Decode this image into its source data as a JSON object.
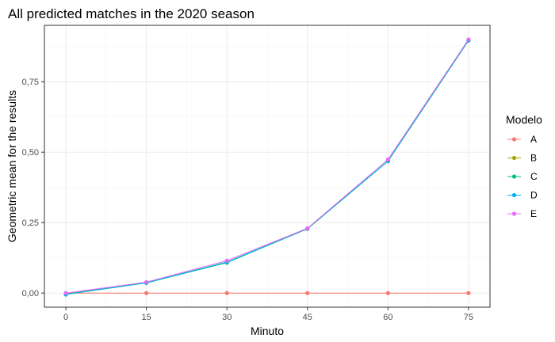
{
  "chart_data": {
    "type": "line",
    "title": "All predicted matches in the 2020 season",
    "xlabel": "Minuto",
    "ylabel": "Geometric mean for the results",
    "x": [
      0,
      15,
      30,
      45,
      60,
      75
    ],
    "xlim": [
      -4,
      79
    ],
    "ylim": [
      -0.05,
      0.95
    ],
    "xticks": [
      0,
      15,
      30,
      45,
      60,
      75
    ],
    "xtick_labels": [
      "0",
      "15",
      "30",
      "45",
      "60",
      "75"
    ],
    "yticks": [
      0,
      0.25,
      0.5,
      0.75
    ],
    "ytick_labels": [
      "0,00",
      "0,25",
      "0,50",
      "0,75"
    ],
    "grid": true,
    "legend": {
      "title": "Modelo",
      "position": "right"
    },
    "series": [
      {
        "name": "A",
        "color": "#F8766D",
        "values": [
          0.0,
          0.0,
          0.0,
          0.0,
          0.0,
          0.0
        ]
      },
      {
        "name": "B",
        "color": "#A3A500",
        "values": [
          -0.003,
          0.037,
          0.11,
          0.228,
          0.468,
          0.896
        ]
      },
      {
        "name": "C",
        "color": "#00BF7D",
        "values": [
          -0.005,
          0.036,
          0.108,
          0.228,
          0.468,
          0.896
        ]
      },
      {
        "name": "D",
        "color": "#00B0F6",
        "values": [
          -0.004,
          0.037,
          0.11,
          0.229,
          0.469,
          0.897
        ]
      },
      {
        "name": "E",
        "color": "#E76BF3",
        "values": [
          0.0,
          0.039,
          0.115,
          0.23,
          0.474,
          0.9
        ]
      }
    ]
  }
}
